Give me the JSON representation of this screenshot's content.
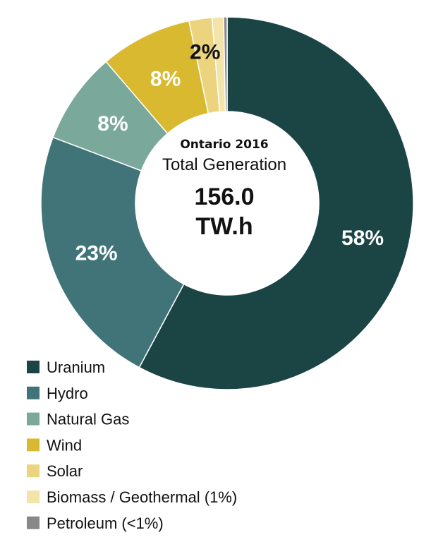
{
  "chart_data": {
    "type": "pie",
    "title": "Ontario 2016",
    "subtitle": "Total Generation",
    "total_value": "156.0",
    "total_unit": "TW.h",
    "categories": [
      "Uranium",
      "Hydro",
      "Natural Gas",
      "Wind",
      "Solar",
      "Biomass / Geothermal (1%)",
      "Petroleum (<1%)"
    ],
    "values": [
      58,
      23,
      8,
      8,
      2,
      1,
      0.3
    ],
    "slice_labels": [
      "58%",
      "23%",
      "8%",
      "8%",
      "2%",
      "",
      ""
    ],
    "colors": [
      "#1b4545",
      "#417479",
      "#7aa99c",
      "#d9b92f",
      "#ecd47e",
      "#f3e4aa",
      "#888888"
    ],
    "label_colors": [
      "#ffffff",
      "#ffffff",
      "#ffffff",
      "#ffffff",
      "#111111",
      "#111111",
      "#111111"
    ],
    "legend_position": "bottom-left"
  }
}
